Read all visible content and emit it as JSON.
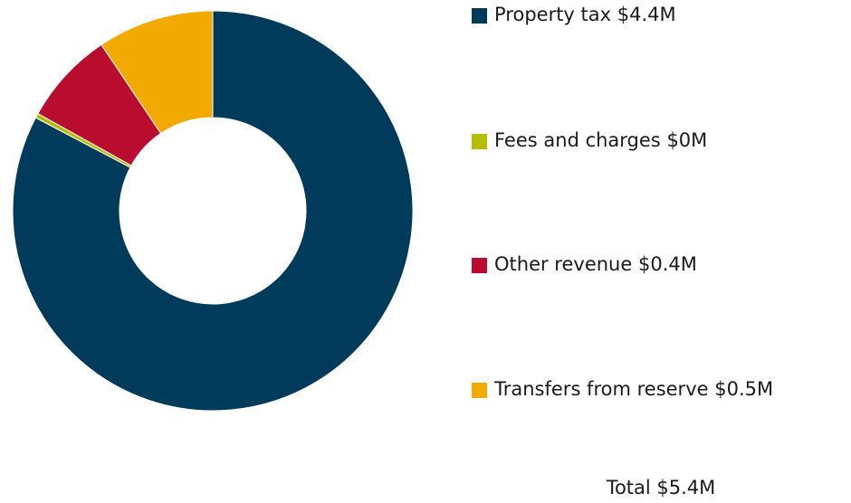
{
  "chart_data": {
    "type": "donut",
    "categories": [
      "Property tax",
      "Fees and charges",
      "Other revenue",
      "Transfers from reserve"
    ],
    "values": [
      4.4,
      0.02,
      0.4,
      0.5
    ],
    "value_labels": [
      "$4.4M",
      "$0M",
      "$0.4M",
      "$0.5M"
    ],
    "colors": [
      "#003b5c",
      "#b5bd00",
      "#ba0c2f",
      "#f2a900"
    ],
    "total_text": "Total $5.4M"
  }
}
